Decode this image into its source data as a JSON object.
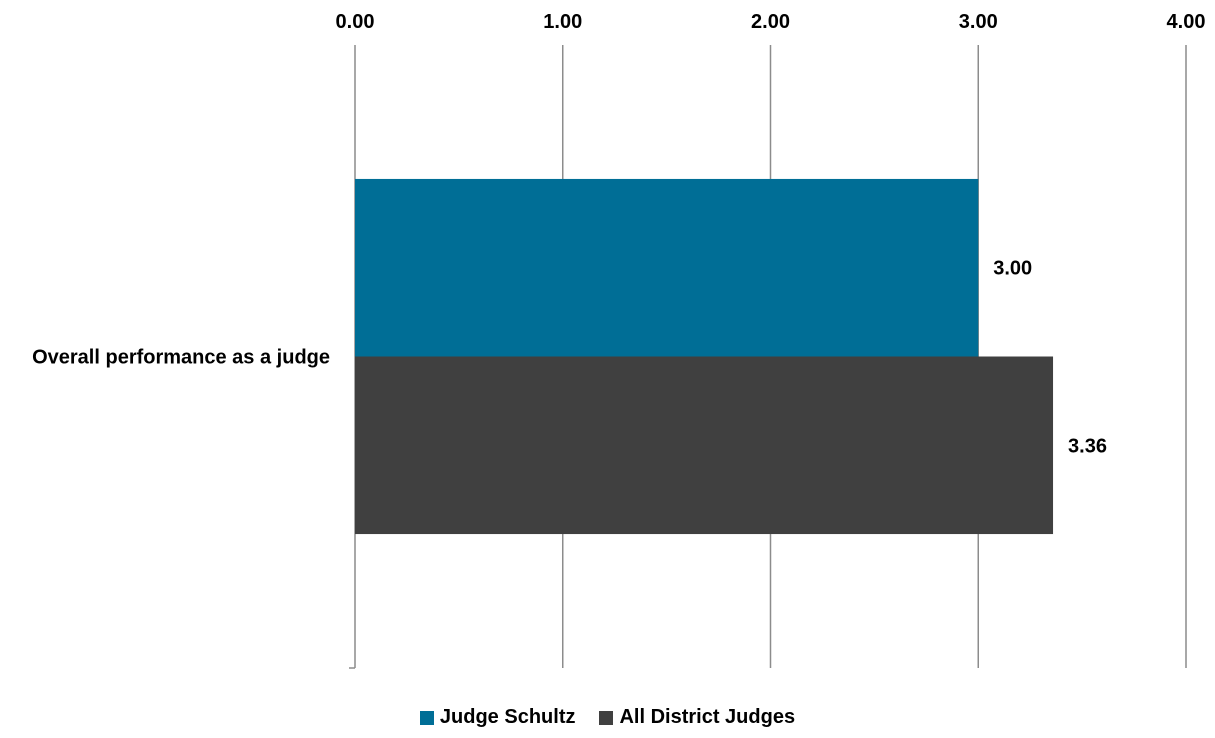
{
  "chart_data": {
    "type": "bar",
    "orientation": "horizontal",
    "categories": [
      "Overall performance as a judge"
    ],
    "series": [
      {
        "name": "Judge Schultz",
        "values": [
          3.0
        ],
        "color": "#006E96",
        "label": "3.00"
      },
      {
        "name": "All District Judges",
        "values": [
          3.36
        ],
        "color": "#404040",
        "label": "3.36"
      }
    ],
    "xlim": [
      0,
      4
    ],
    "xticks": [
      "0.00",
      "1.00",
      "2.00",
      "3.00",
      "4.00"
    ],
    "xaxis_position": "top",
    "grid": "vertical",
    "legend": "bottom-center"
  }
}
